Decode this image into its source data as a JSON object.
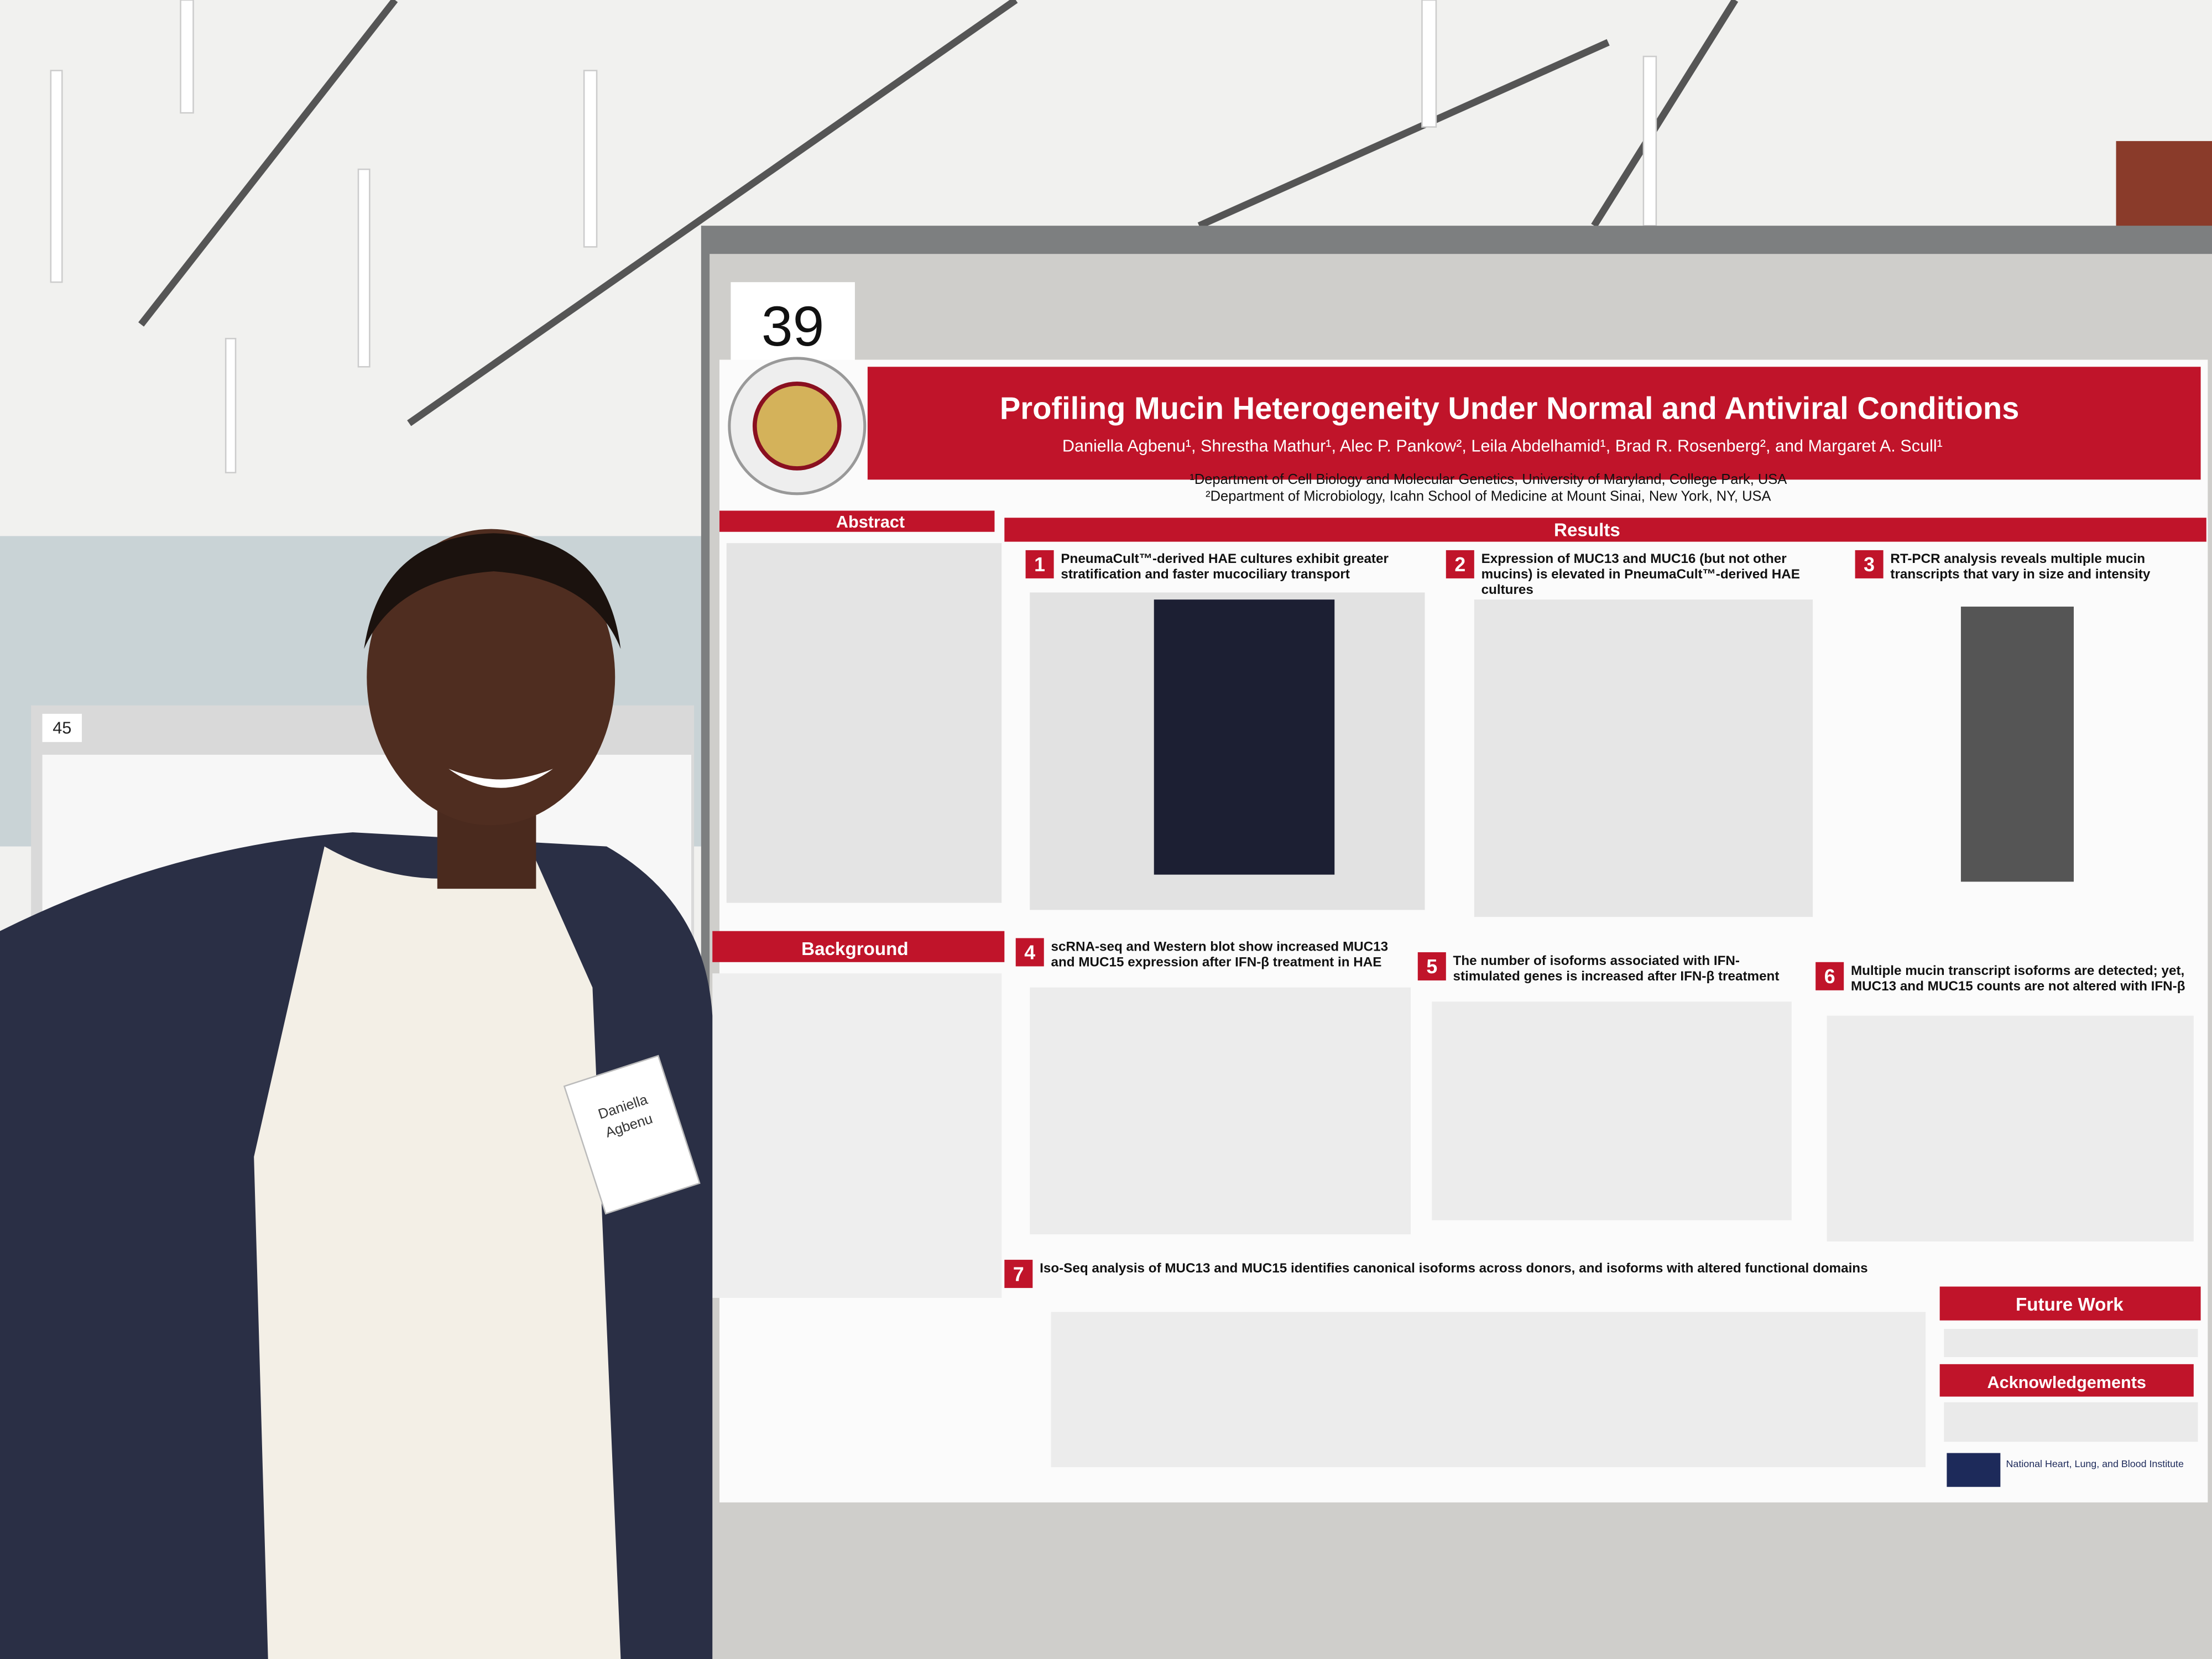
{
  "board_number": "39",
  "neighbor_board_number": "45",
  "poster": {
    "title": "Profiling Mucin Heterogeneity Under Normal and Antiviral Conditions",
    "authors": "Daniella Agbenu¹, Shrestha Mathur¹, Alec P. Pankow², Leila Abdelhamid¹, Brad R. Rosenberg², and Margaret A. Scull¹",
    "affiliations": [
      "¹Department of Cell Biology and Molecular Genetics, University of Maryland, College Park, USA",
      "²Department of Microbiology, Icahn School of Medicine at Mount Sinai, New York, NY, USA"
    ],
    "sections": {
      "abstract": "Abstract",
      "results": "Results",
      "background": "Background",
      "future_work": "Future Work",
      "acknowledgements": "Acknowledgements"
    },
    "panels": [
      {
        "number": "1",
        "title": "PneumaCult™-derived HAE cultures exhibit greater stratification and faster mucociliary transport"
      },
      {
        "number": "2",
        "title": "Expression of MUC13 and MUC16 (but not other mucins) is elevated in PneumaCult™-derived HAE cultures"
      },
      {
        "number": "3",
        "title": "RT-PCR analysis reveals multiple mucin transcripts that vary in size and intensity"
      },
      {
        "number": "4",
        "title": "scRNA-seq and Western blot show increased MUC13 and MUC15 expression after IFN-β treatment in HAE"
      },
      {
        "number": "5",
        "title": "The number of isoforms associated with IFN-stimulated genes is increased after IFN-β treatment"
      },
      {
        "number": "6",
        "title": "Multiple mucin transcript isoforms are detected; yet, MUC13 and MUC15 counts are not altered with IFN-β"
      },
      {
        "number": "7",
        "title": "Iso-Seq analysis of MUC13 and MUC15 identifies canonical isoforms across donors, and isoforms with altered functional domains"
      }
    ],
    "funder": "National Heart, Lung, and Blood Institute"
  },
  "name_tag": {
    "first": "Daniella",
    "last": "Agbenu"
  }
}
